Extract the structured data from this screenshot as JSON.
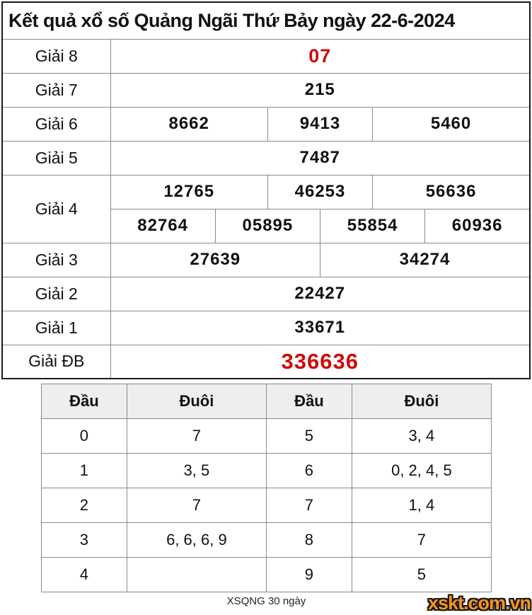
{
  "title": "Kết quả xổ số Quảng Ngãi Thứ Bảy ngày 22-6-2024",
  "colors": {
    "accent_red": "#d10a0a",
    "logo_orange": "#f7941d",
    "inner_border_gray": "#8a8a8a",
    "header_row_bg": "#eeeeee"
  },
  "results_table": {
    "prizes": [
      {
        "label": "Giải 8",
        "lines": [
          [
            {
              "v": "07",
              "span": 8,
              "red": true,
              "size": "g8"
            }
          ]
        ]
      },
      {
        "label": "Giải 7",
        "lines": [
          [
            {
              "v": "215",
              "span": 8
            }
          ]
        ]
      },
      {
        "label": "Giải 6",
        "lines": [
          [
            {
              "v": "8662",
              "span": 3
            },
            {
              "v": "9413",
              "span": 2
            },
            {
              "v": "5460",
              "span": 3
            }
          ]
        ]
      },
      {
        "label": "Giải 5",
        "lines": [
          [
            {
              "v": "7487",
              "span": 8
            }
          ]
        ]
      },
      {
        "label": "Giải 4",
        "lines": [
          [
            {
              "v": "12765",
              "span": 3
            },
            {
              "v": "46253",
              "span": 2
            },
            {
              "v": "56636",
              "span": 3
            }
          ],
          [
            {
              "v": "82764",
              "span": 2
            },
            {
              "v": "05895",
              "span": 2
            },
            {
              "v": "55854",
              "span": 2
            },
            {
              "v": "60936",
              "span": 2
            }
          ]
        ]
      },
      {
        "label": "Giải 3",
        "lines": [
          [
            {
              "v": "27639",
              "span": 4
            },
            {
              "v": "34274",
              "span": 4
            }
          ]
        ]
      },
      {
        "label": "Giải 2",
        "lines": [
          [
            {
              "v": "22427",
              "span": 8
            }
          ]
        ]
      },
      {
        "label": "Giải 1",
        "lines": [
          [
            {
              "v": "33671",
              "span": 8
            }
          ]
        ]
      },
      {
        "label": "Giải ĐB",
        "lines": [
          [
            {
              "v": "336636",
              "span": 8,
              "red": true,
              "size": "db"
            }
          ]
        ]
      }
    ]
  },
  "head_tail_table": {
    "headers": [
      "Đầu",
      "Đuôi",
      "Đầu",
      "Đuôi"
    ],
    "rows": [
      [
        "0",
        "7",
        "5",
        "3, 4"
      ],
      [
        "1",
        "3, 5",
        "6",
        "0, 2, 4, 5"
      ],
      [
        "2",
        "7",
        "7",
        "1, 4"
      ],
      [
        "3",
        "6, 6, 6, 9",
        "8",
        "7"
      ],
      [
        "4",
        "",
        "9",
        "5"
      ]
    ]
  },
  "footer": {
    "history_label": "XSQNG 30 ngày",
    "logo_text": "xskt.com.vn"
  }
}
